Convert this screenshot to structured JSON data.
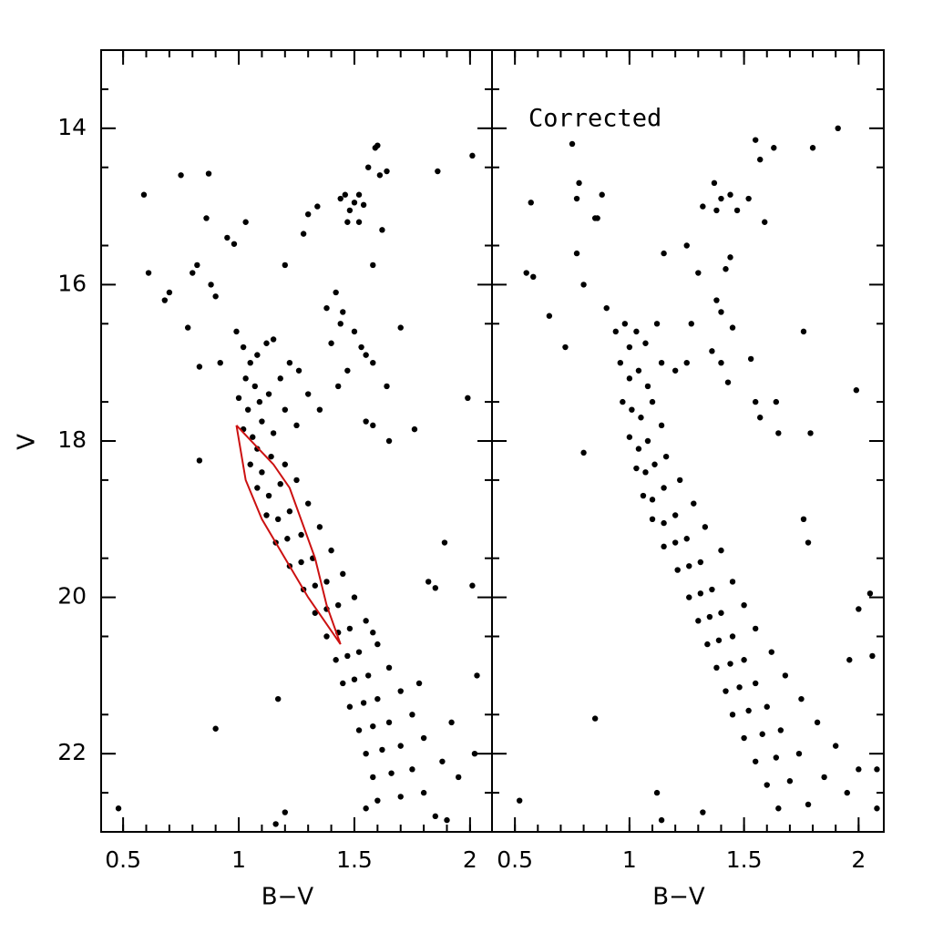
{
  "chart_data": [
    {
      "type": "scatter",
      "xlabel": "B−V",
      "ylabel": "V",
      "xlim": [
        0.405,
        2.095
      ],
      "ylim": [
        23,
        13
      ],
      "xticks": [
        0.5,
        1,
        1.5,
        2
      ],
      "yticks": [
        14,
        16,
        18,
        20,
        22
      ],
      "xminor": [
        0.5,
        0.6,
        0.7,
        0.8,
        0.9,
        1.0,
        1.1,
        1.2,
        1.3,
        1.4,
        1.5,
        1.6,
        1.7,
        1.8,
        1.9,
        2.0
      ],
      "yminor": [
        13.5,
        14.5,
        15.5,
        16.5,
        17.5,
        18.5,
        19.5,
        20.5,
        21.5,
        22.5
      ],
      "color": "#000000",
      "x": [
        0.59,
        0.61,
        0.68,
        0.7,
        0.75,
        0.78,
        0.8,
        0.82,
        0.83,
        0.86,
        0.87,
        0.88,
        0.9,
        0.92,
        0.95,
        0.98,
        1.03,
        1.2,
        1.28,
        1.3,
        1.34,
        1.44,
        1.46,
        1.48,
        1.5,
        1.52,
        1.47,
        1.52,
        1.54,
        1.56,
        1.59,
        1.6,
        1.61,
        1.64,
        1.62,
        1.58,
        1.86,
        2.01,
        1.42,
        1.38,
        1.45,
        1.5,
        1.53,
        1.55,
        1.44,
        1.4,
        1.47,
        1.43,
        1.58,
        1.64,
        1.7,
        1.55,
        1.58,
        1.65,
        1.76,
        0.83,
        1.99,
        1.89,
        1.82,
        1.85,
        2.01,
        0.9,
        1.17,
        1.2,
        1.16,
        0.48,
        0.99,
        1.02,
        1.05,
        1.08,
        1.12,
        1.15,
        1.03,
        1.07,
        1.0,
        1.04,
        1.09,
        1.13,
        1.18,
        1.22,
        1.26,
        1.02,
        1.06,
        1.1,
        1.15,
        1.2,
        1.25,
        1.3,
        1.35,
        1.08,
        1.05,
        1.1,
        1.14,
        1.2,
        1.08,
        1.13,
        1.18,
        1.25,
        1.12,
        1.17,
        1.22,
        1.3,
        1.16,
        1.21,
        1.27,
        1.35,
        1.22,
        1.27,
        1.32,
        1.4,
        1.28,
        1.33,
        1.38,
        1.45,
        1.33,
        1.38,
        1.43,
        1.5,
        1.38,
        1.43,
        1.48,
        1.55,
        1.42,
        1.47,
        1.52,
        1.6,
        1.45,
        1.5,
        1.56,
        1.65,
        1.48,
        1.54,
        1.6,
        1.7,
        1.52,
        1.58,
        1.65,
        1.75,
        1.55,
        1.62,
        1.7,
        1.8,
        1.58,
        1.66,
        1.75,
        1.88,
        1.6,
        1.7,
        1.8,
        1.95,
        1.85,
        2.02,
        1.92,
        1.78,
        1.55,
        1.9,
        2.03,
        1.58
      ],
      "values": [
        14.85,
        15.85,
        16.2,
        16.1,
        14.6,
        16.55,
        15.85,
        15.75,
        17.05,
        15.15,
        14.58,
        16.0,
        16.15,
        17.0,
        15.4,
        15.48,
        15.2,
        15.75,
        15.35,
        15.1,
        15.0,
        14.9,
        14.85,
        15.05,
        14.95,
        14.85,
        15.2,
        15.2,
        14.98,
        14.5,
        14.25,
        14.22,
        14.6,
        14.55,
        15.3,
        15.75,
        14.55,
        14.35,
        16.1,
        16.3,
        16.35,
        16.6,
        16.8,
        16.9,
        16.5,
        16.75,
        17.1,
        17.3,
        17.0,
        17.3,
        16.55,
        17.75,
        17.8,
        18.0,
        17.85,
        18.25,
        17.45,
        19.3,
        19.8,
        19.88,
        19.85,
        21.68,
        21.3,
        22.75,
        22.9,
        22.7,
        16.6,
        16.8,
        17.0,
        16.9,
        16.75,
        16.7,
        17.2,
        17.3,
        17.45,
        17.6,
        17.5,
        17.4,
        17.2,
        17.0,
        17.1,
        17.85,
        17.95,
        17.75,
        17.9,
        17.6,
        17.8,
        17.4,
        17.6,
        18.1,
        18.3,
        18.4,
        18.2,
        18.3,
        18.6,
        18.7,
        18.55,
        18.5,
        18.95,
        19.0,
        18.9,
        18.8,
        19.3,
        19.25,
        19.2,
        19.1,
        19.6,
        19.55,
        19.5,
        19.4,
        19.9,
        19.85,
        19.8,
        19.7,
        20.2,
        20.15,
        20.1,
        20.0,
        20.5,
        20.45,
        20.4,
        20.3,
        20.8,
        20.75,
        20.7,
        20.6,
        21.1,
        21.05,
        21.0,
        20.9,
        21.4,
        21.35,
        21.3,
        21.2,
        21.7,
        21.65,
        21.6,
        21.5,
        22.0,
        21.95,
        21.9,
        21.8,
        22.3,
        22.25,
        22.2,
        22.1,
        22.6,
        22.55,
        22.5,
        22.3,
        22.8,
        22.0,
        21.6,
        21.1,
        22.7,
        22.85,
        21.0,
        20.45
      ],
      "region": {
        "color": "#cc1111",
        "x": [
          0.99,
          1.15,
          1.22,
          1.33,
          1.38,
          1.44,
          1.3,
          1.2,
          1.1,
          1.03,
          0.99
        ],
        "y": [
          17.8,
          18.3,
          18.6,
          19.5,
          20.1,
          20.6,
          20.0,
          19.5,
          19.0,
          18.5,
          17.8
        ]
      }
    },
    {
      "type": "scatter",
      "xlabel": "B−V",
      "annotation": "Corrected",
      "xlim": [
        0.4,
        2.11
      ],
      "ylim": [
        23,
        13
      ],
      "xticks": [
        0.5,
        1,
        1.5,
        2
      ],
      "yticks": [
        14,
        16,
        18,
        20,
        22
      ],
      "ytick_labels": false,
      "xminor": [
        0.5,
        0.6,
        0.7,
        0.8,
        0.9,
        1.0,
        1.1,
        1.2,
        1.3,
        1.4,
        1.5,
        1.6,
        1.7,
        1.8,
        1.9,
        2.0
      ],
      "yminor": [
        13.5,
        14.5,
        15.5,
        16.5,
        17.5,
        18.5,
        19.5,
        20.5,
        21.5,
        22.5
      ],
      "color": "#000000",
      "x": [
        0.55,
        0.58,
        0.57,
        0.65,
        0.72,
        0.75,
        0.77,
        0.78,
        0.77,
        0.8,
        0.85,
        0.86,
        0.88,
        0.9,
        0.94,
        1.15,
        1.25,
        1.27,
        1.3,
        1.32,
        1.37,
        1.38,
        1.4,
        1.44,
        1.47,
        1.52,
        1.55,
        1.57,
        1.59,
        1.63,
        1.8,
        1.91,
        1.44,
        1.42,
        1.38,
        1.4,
        1.45,
        1.36,
        1.4,
        1.43,
        1.53,
        1.55,
        1.57,
        1.64,
        1.76,
        1.65,
        1.79,
        1.99,
        1.76,
        1.78,
        2.0,
        2.05,
        0.8,
        0.85,
        1.12,
        1.14,
        1.32,
        0.52,
        2.08,
        2.06,
        1.96,
        0.98,
        1.0,
        1.03,
        1.07,
        1.12,
        0.96,
        1.0,
        1.04,
        1.08,
        1.14,
        0.97,
        1.01,
        1.05,
        1.1,
        1.2,
        1.25,
        1.0,
        1.04,
        1.08,
        1.14,
        1.03,
        1.07,
        1.11,
        1.16,
        1.06,
        1.1,
        1.15,
        1.22,
        1.1,
        1.15,
        1.2,
        1.28,
        1.15,
        1.2,
        1.25,
        1.33,
        1.21,
        1.26,
        1.31,
        1.4,
        1.26,
        1.31,
        1.36,
        1.45,
        1.3,
        1.35,
        1.4,
        1.5,
        1.34,
        1.39,
        1.45,
        1.55,
        1.38,
        1.44,
        1.5,
        1.62,
        1.42,
        1.48,
        1.55,
        1.68,
        1.45,
        1.52,
        1.6,
        1.75,
        1.5,
        1.58,
        1.66,
        1.82,
        1.55,
        1.64,
        1.74,
        1.9,
        1.6,
        1.7,
        1.85,
        2.0,
        1.65,
        1.78,
        1.95,
        2.08
      ],
      "values": [
        15.85,
        15.9,
        14.95,
        16.4,
        16.8,
        14.2,
        14.9,
        14.7,
        15.6,
        16.0,
        15.15,
        15.15,
        14.85,
        16.3,
        16.6,
        15.6,
        15.5,
        16.5,
        15.85,
        15.0,
        14.7,
        15.05,
        14.9,
        14.85,
        15.05,
        14.9,
        14.15,
        14.4,
        15.2,
        14.25,
        14.25,
        14.0,
        15.65,
        15.8,
        16.2,
        16.35,
        16.55,
        16.85,
        17.0,
        17.25,
        16.95,
        17.5,
        17.7,
        17.5,
        16.6,
        17.9,
        17.9,
        17.35,
        19.0,
        19.3,
        20.15,
        19.95,
        18.15,
        21.55,
        22.5,
        22.85,
        22.75,
        22.6,
        22.7,
        20.75,
        20.8,
        16.5,
        16.8,
        16.6,
        16.75,
        16.5,
        17.0,
        17.2,
        17.1,
        17.3,
        17.0,
        17.5,
        17.6,
        17.7,
        17.5,
        17.1,
        17.0,
        17.95,
        18.1,
        18.0,
        17.8,
        18.35,
        18.4,
        18.3,
        18.2,
        18.7,
        18.75,
        18.6,
        18.5,
        19.0,
        19.05,
        18.95,
        18.8,
        19.35,
        19.3,
        19.25,
        19.1,
        19.65,
        19.6,
        19.55,
        19.4,
        20.0,
        19.95,
        19.9,
        19.8,
        20.3,
        20.25,
        20.2,
        20.1,
        20.6,
        20.55,
        20.5,
        20.4,
        20.9,
        20.85,
        20.8,
        20.7,
        21.2,
        21.15,
        21.1,
        21.0,
        21.5,
        21.45,
        21.4,
        21.3,
        21.8,
        21.75,
        21.7,
        21.6,
        22.1,
        22.05,
        22.0,
        21.9,
        22.4,
        22.35,
        22.3,
        22.2,
        22.7,
        22.65,
        22.5,
        22.2
      ]
    }
  ]
}
